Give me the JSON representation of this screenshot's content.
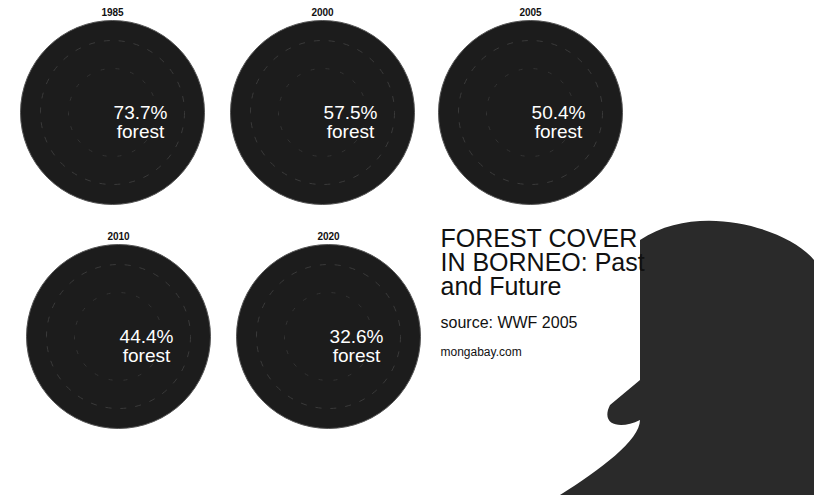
{
  "chart_data": {
    "type": "map",
    "title": "FOREST COVER IN BORNEO: Past and Future",
    "source": "source: WWF 2005",
    "credit": "mongabay.com",
    "categories": [
      "1985",
      "2000",
      "2005",
      "2010",
      "2020"
    ],
    "values": [
      73.7,
      57.5,
      50.4,
      44.4,
      32.6
    ],
    "value_labels": [
      "73.7% forest",
      "57.5% forest",
      "50.4% forest",
      "44.4% forest",
      "32.6% forest"
    ],
    "data_labels": true,
    "color": "#1c1c1c"
  }
}
